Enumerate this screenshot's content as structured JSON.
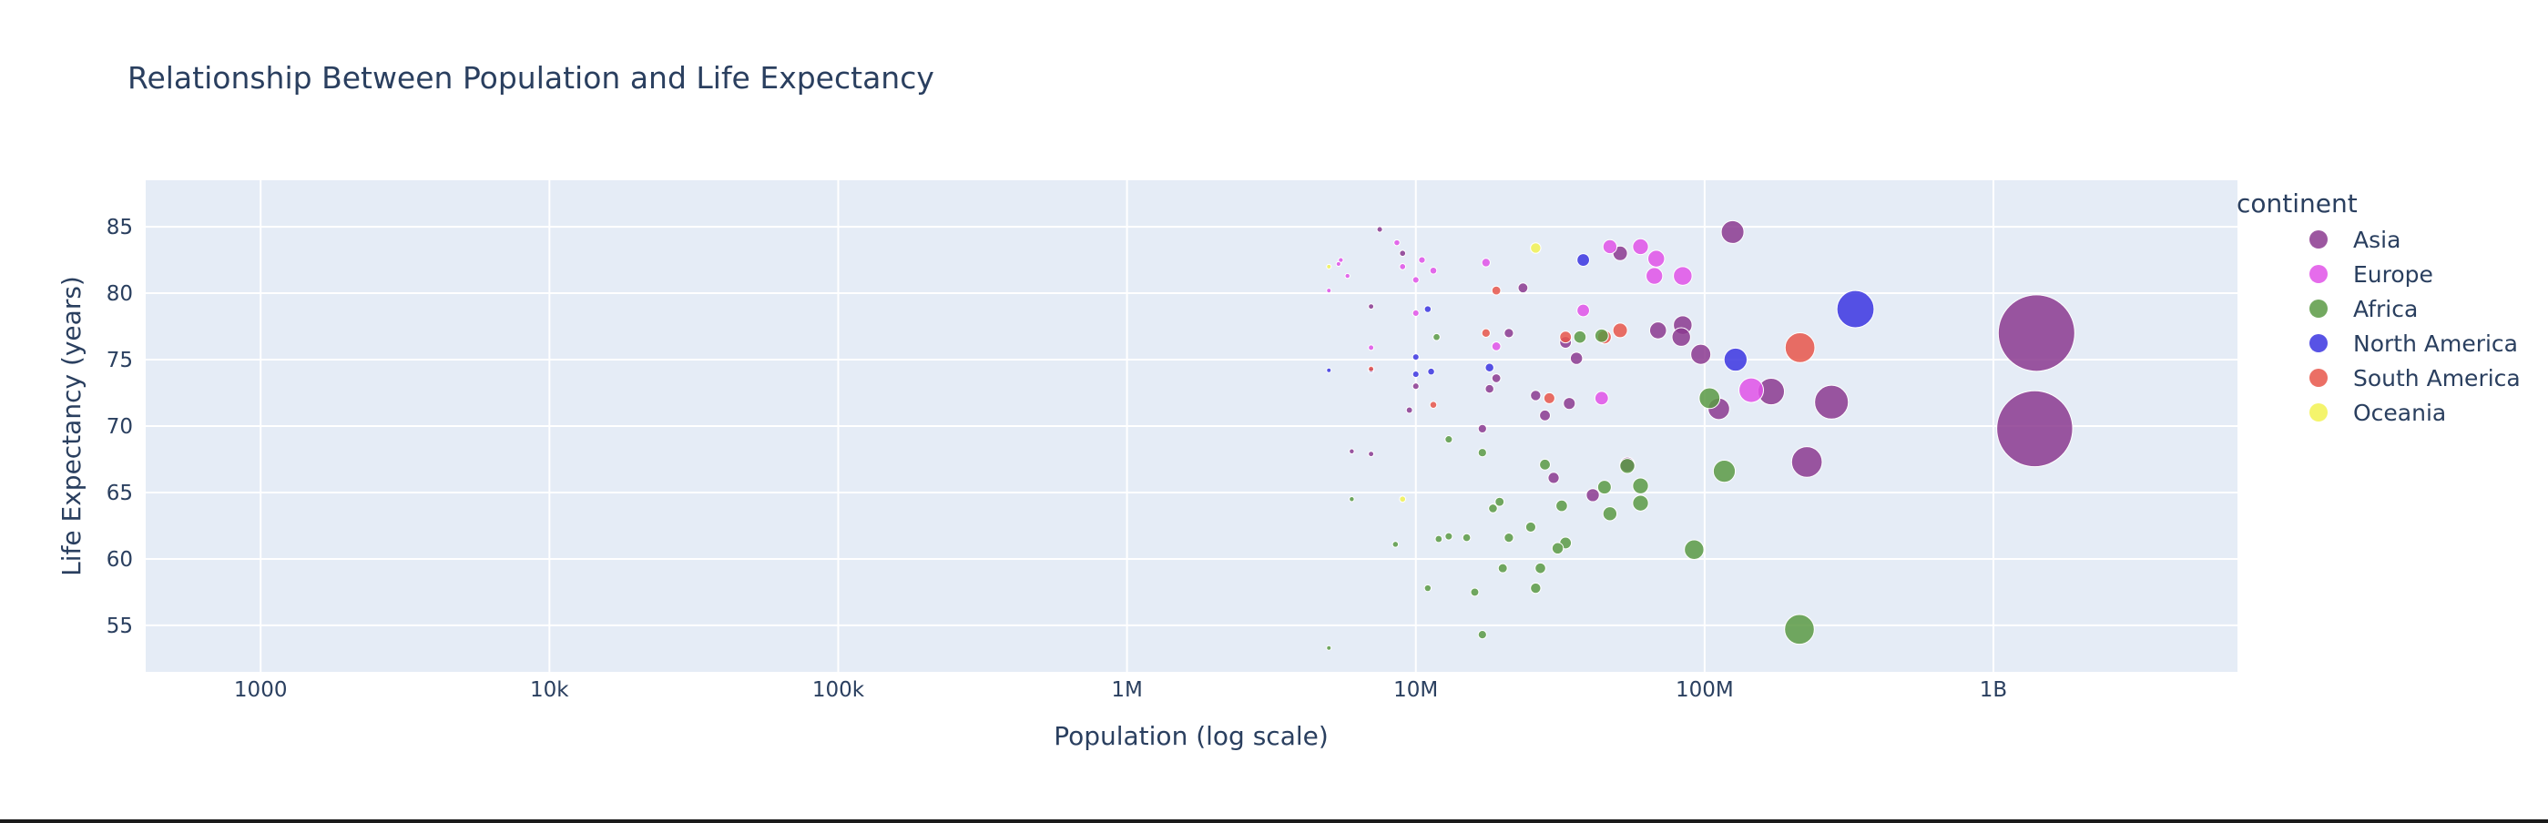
{
  "chart_data": {
    "type": "scatter",
    "title": "Relationship Between Population and Life Expectancy",
    "xlabel": "Population (log scale)",
    "ylabel": "Life Expectancy (years)",
    "x_scale": "log",
    "xlim": [
      400,
      7000000000
    ],
    "ylim": [
      51.5,
      88.5
    ],
    "x_ticks": [
      1000,
      10000,
      100000,
      1000000,
      10000000,
      100000000,
      1000000000
    ],
    "x_tick_labels": [
      "1000",
      "10k",
      "100k",
      "1M",
      "10M",
      "100M",
      "1B"
    ],
    "y_ticks": [
      55,
      60,
      65,
      70,
      75,
      80,
      85
    ],
    "y_tick_labels": [
      "55",
      "60",
      "65",
      "70",
      "75",
      "80",
      "85"
    ],
    "grid": true,
    "legend": {
      "title": "continent",
      "placement": "right"
    },
    "series": [
      {
        "name": "Asia",
        "color": "#8b3a8f",
        "points": [
          [
            1410000000,
            77,
            1410000000
          ],
          [
            1390000000,
            69.8,
            1390000000
          ],
          [
            275000000,
            71.8,
            275000000
          ],
          [
            226000000,
            67.3,
            226000000
          ],
          [
            170000000,
            72.6,
            170000000
          ],
          [
            125000000,
            84.6,
            125000000
          ],
          [
            112000000,
            71.3,
            112000000
          ],
          [
            97000000,
            75.4,
            97000000
          ],
          [
            84000000,
            77.6,
            84000000
          ],
          [
            83000000,
            76.7,
            83000000
          ],
          [
            69000000,
            77.2,
            69000000
          ],
          [
            54000000,
            67.1,
            54000000
          ],
          [
            51000000,
            83,
            51000000
          ],
          [
            41000000,
            64.8,
            41000000
          ],
          [
            36000000,
            75.1,
            36000000
          ],
          [
            34000000,
            71.7,
            34000000
          ],
          [
            33000000,
            76.3,
            33000000
          ],
          [
            30000000,
            66.1,
            30000000
          ],
          [
            28000000,
            70.8,
            28000000
          ],
          [
            26000000,
            72.3,
            26000000
          ],
          [
            23500000,
            80.4,
            23500000
          ],
          [
            21000000,
            77,
            21000000
          ],
          [
            19000000,
            73.6,
            19000000
          ],
          [
            18000000,
            72.8,
            18000000
          ],
          [
            17000000,
            69.8,
            17000000
          ],
          [
            10000000,
            73,
            10000000
          ],
          [
            9500000,
            71.2,
            9500000
          ],
          [
            9000000,
            83,
            9000000
          ],
          [
            7500000,
            84.8,
            7500000
          ],
          [
            7000000,
            79,
            7000000
          ],
          [
            7000000,
            67.9,
            7000000
          ],
          [
            6000000,
            68.1,
            6000000
          ]
        ]
      },
      {
        "name": "Europe",
        "color": "#e052e8",
        "points": [
          [
            145000000,
            72.7,
            145000000
          ],
          [
            84000000,
            81.3,
            84000000
          ],
          [
            68000000,
            82.6,
            68000000
          ],
          [
            67000000,
            81.3,
            67000000
          ],
          [
            60000000,
            83.5,
            60000000
          ],
          [
            47000000,
            83.5,
            47000000
          ],
          [
            44000000,
            72.1,
            44000000
          ],
          [
            38000000,
            78.7,
            38000000
          ],
          [
            19000000,
            76,
            19000000
          ],
          [
            17500000,
            82.3,
            17500000
          ],
          [
            11500000,
            81.7,
            11500000
          ],
          [
            10500000,
            82.5,
            10500000
          ],
          [
            10000000,
            81,
            10000000
          ],
          [
            10000000,
            78.5,
            10000000
          ],
          [
            9000000,
            82,
            9000000
          ],
          [
            8600000,
            83.8,
            8600000
          ],
          [
            7000000,
            75.9,
            7000000
          ],
          [
            5800000,
            81.3,
            5800000
          ],
          [
            5500000,
            82.5,
            5500000
          ],
          [
            5400000,
            82.2,
            5400000
          ],
          [
            5000000,
            80.2,
            5000000
          ]
        ]
      },
      {
        "name": "Africa",
        "color": "#5a9a44",
        "points": [
          [
            213000000,
            54.7,
            213000000
          ],
          [
            117000000,
            66.6,
            117000000
          ],
          [
            104000000,
            72.1,
            104000000
          ],
          [
            92000000,
            60.7,
            92000000
          ],
          [
            60000000,
            64.2,
            60000000
          ],
          [
            60000000,
            65.5,
            60000000
          ],
          [
            54000000,
            67,
            54000000
          ],
          [
            47000000,
            63.4,
            47000000
          ],
          [
            45000000,
            65.4,
            45000000
          ],
          [
            44000000,
            76.8,
            44000000
          ],
          [
            37000000,
            76.7,
            37000000
          ],
          [
            33000000,
            61.2,
            33000000
          ],
          [
            32000000,
            64,
            32000000
          ],
          [
            31000000,
            60.8,
            31000000
          ],
          [
            28000000,
            67.1,
            28000000
          ],
          [
            27000000,
            59.3,
            27000000
          ],
          [
            26000000,
            57.8,
            26000000
          ],
          [
            25000000,
            62.4,
            25000000
          ],
          [
            21000000,
            61.6,
            21000000
          ],
          [
            20000000,
            59.3,
            20000000
          ],
          [
            19500000,
            64.3,
            19500000
          ],
          [
            18500000,
            63.8,
            18500000
          ],
          [
            17000000,
            54.3,
            17000000
          ],
          [
            17000000,
            68,
            17000000
          ],
          [
            16000000,
            57.5,
            16000000
          ],
          [
            15000000,
            61.6,
            15000000
          ],
          [
            13000000,
            69,
            13000000
          ],
          [
            13000000,
            61.7,
            13000000
          ],
          [
            12000000,
            61.5,
            12000000
          ],
          [
            11800000,
            76.7,
            11800000
          ],
          [
            11000000,
            57.8,
            11000000
          ],
          [
            8500000,
            61.1,
            8500000
          ],
          [
            6000000,
            64.5,
            6000000
          ],
          [
            5000000,
            53.3,
            5000000
          ]
        ]
      },
      {
        "name": "North America",
        "color": "#3b35e0",
        "points": [
          [
            333000000,
            78.8,
            333000000
          ],
          [
            128000000,
            75,
            128000000
          ],
          [
            38000000,
            82.5,
            38000000
          ],
          [
            18000000,
            74.4,
            18000000
          ],
          [
            11300000,
            74.1,
            11300000
          ],
          [
            11000000,
            78.8,
            11000000
          ],
          [
            10000000,
            75.2,
            10000000
          ],
          [
            10000000,
            73.9,
            10000000
          ],
          [
            7000000,
            74.2,
            7000000
          ],
          [
            5000000,
            74.2,
            5000000
          ]
        ]
      },
      {
        "name": "South America",
        "color": "#e8564a",
        "points": [
          [
            214000000,
            75.9,
            214000000
          ],
          [
            51000000,
            77.2,
            51000000
          ],
          [
            45000000,
            76.7,
            45000000
          ],
          [
            33000000,
            76.7,
            33000000
          ],
          [
            29000000,
            72.1,
            29000000
          ],
          [
            19000000,
            80.2,
            19000000
          ],
          [
            17500000,
            77,
            17500000
          ],
          [
            11500000,
            71.6,
            11500000
          ],
          [
            7000000,
            74.3,
            7000000
          ]
        ]
      },
      {
        "name": "Oceania",
        "color": "#f2f252",
        "points": [
          [
            26000000,
            83.4,
            26000000
          ],
          [
            9000000,
            64.5,
            9000000
          ],
          [
            5000000,
            82,
            5000000
          ]
        ]
      }
    ],
    "point_format": [
      "population",
      "life_expectancy",
      "size_by_population"
    ]
  }
}
